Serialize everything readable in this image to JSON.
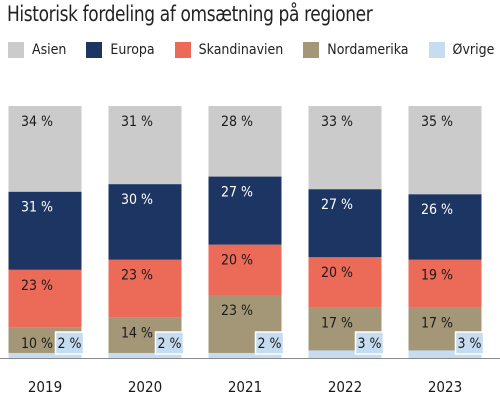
{
  "chart_data": {
    "type": "bar",
    "stacked": true,
    "title": "Historisk fordeling af omsætning på regioner",
    "categories": [
      "2019",
      "2020",
      "2021",
      "2022",
      "2023"
    ],
    "ylim": [
      0,
      100
    ],
    "series": [
      {
        "name": "Øvrige",
        "color": "#c6dcf0",
        "values": [
          2,
          2,
          2,
          3,
          3
        ],
        "labels": [
          "2 %",
          "2 %",
          "2 %",
          "3 %",
          "3 %"
        ]
      },
      {
        "name": "Nordamerika",
        "color": "#a39778",
        "values": [
          10,
          14,
          23,
          17,
          17
        ],
        "labels": [
          "10 %",
          "14 %",
          "23 %",
          "17 %",
          "17 %"
        ]
      },
      {
        "name": "Skandinavien",
        "color": "#ec6a58",
        "values": [
          23,
          23,
          20,
          20,
          19
        ],
        "labels": [
          "23 %",
          "23 %",
          "20 %",
          "20 %",
          "19 %"
        ]
      },
      {
        "name": "Europa",
        "color": "#1c3562",
        "values": [
          31,
          30,
          27,
          27,
          26
        ],
        "labels": [
          "31 %",
          "30 %",
          "27 %",
          "27 %",
          "26 %"
        ]
      },
      {
        "name": "Asien",
        "color": "#cbcbcb",
        "values": [
          34,
          31,
          28,
          33,
          35
        ],
        "labels": [
          "34 %",
          "31 %",
          "28 %",
          "33 %",
          "35 %"
        ]
      }
    ],
    "legend": {
      "position": "top-left",
      "order": [
        "Asien",
        "Europa",
        "Skandinavien",
        "Nordamerika",
        "Øvrige"
      ]
    },
    "grid": false
  }
}
